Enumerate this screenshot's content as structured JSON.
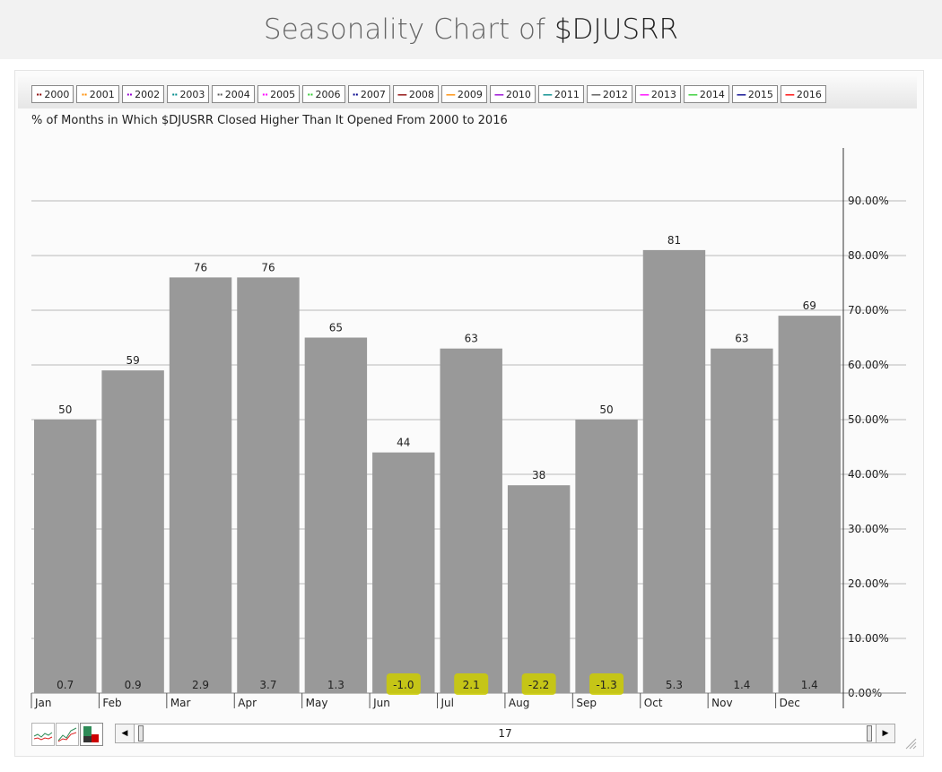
{
  "header": {
    "title_prefix": "Seasonality Chart of",
    "symbol": "$DJUSRR"
  },
  "legend": [
    {
      "label": "2000",
      "style": "dotted",
      "color": "#8b0000"
    },
    {
      "label": "2001",
      "style": "dotted",
      "color": "#ff8c00"
    },
    {
      "label": "2002",
      "style": "dotted",
      "color": "#9400d3"
    },
    {
      "label": "2003",
      "style": "dotted",
      "color": "#008b8b"
    },
    {
      "label": "2004",
      "style": "dotted",
      "color": "#555555"
    },
    {
      "label": "2005",
      "style": "dotted",
      "color": "#ff00ff"
    },
    {
      "label": "2006",
      "style": "dotted",
      "color": "#32cd32"
    },
    {
      "label": "2007",
      "style": "dotted",
      "color": "#00008b"
    },
    {
      "label": "2008",
      "style": "solid",
      "color": "#8b0000"
    },
    {
      "label": "2009",
      "style": "solid",
      "color": "#ff8c00"
    },
    {
      "label": "2010",
      "style": "solid",
      "color": "#9400d3"
    },
    {
      "label": "2011",
      "style": "solid",
      "color": "#008b8b"
    },
    {
      "label": "2012",
      "style": "solid",
      "color": "#555555"
    },
    {
      "label": "2013",
      "style": "solid",
      "color": "#ff00ff"
    },
    {
      "label": "2014",
      "style": "solid",
      "color": "#32cd32"
    },
    {
      "label": "2015",
      "style": "solid",
      "color": "#00008b"
    },
    {
      "label": "2016",
      "style": "solid",
      "color": "#ff0000"
    }
  ],
  "chart_data": {
    "type": "bar",
    "subtitle": "% of Months in Which $DJUSRR Closed Higher Than It Opened From 2000 to 2016",
    "categories": [
      "Jan",
      "Feb",
      "Mar",
      "Apr",
      "May",
      "Jun",
      "Jul",
      "Aug",
      "Sep",
      "Oct",
      "Nov",
      "Dec"
    ],
    "values": [
      50,
      59,
      76,
      76,
      65,
      44,
      63,
      38,
      50,
      81,
      63,
      69
    ],
    "avg_change_labels": [
      "0.7",
      "0.9",
      "2.9",
      "3.7",
      "1.3",
      "-1.0",
      "2.1",
      "-2.2",
      "-1.3",
      "5.3",
      "1.4",
      "1.4"
    ],
    "highlighted_months": [
      "Jun",
      "Jul",
      "Aug",
      "Sep"
    ],
    "y_ticks": [
      0,
      10,
      20,
      30,
      40,
      50,
      60,
      70,
      80,
      90
    ],
    "y_tick_labels": [
      "0.00%",
      "10.00%",
      "20.00%",
      "30.00%",
      "40.00%",
      "50.00%",
      "60.00%",
      "70.00%",
      "80.00%",
      "90.00%"
    ],
    "ylim": [
      0,
      100
    ],
    "grid": true,
    "bar_color": "#999999",
    "highlight_color": "#cccc00",
    "axis_position": "right"
  },
  "scrollbar": {
    "value": "17"
  }
}
